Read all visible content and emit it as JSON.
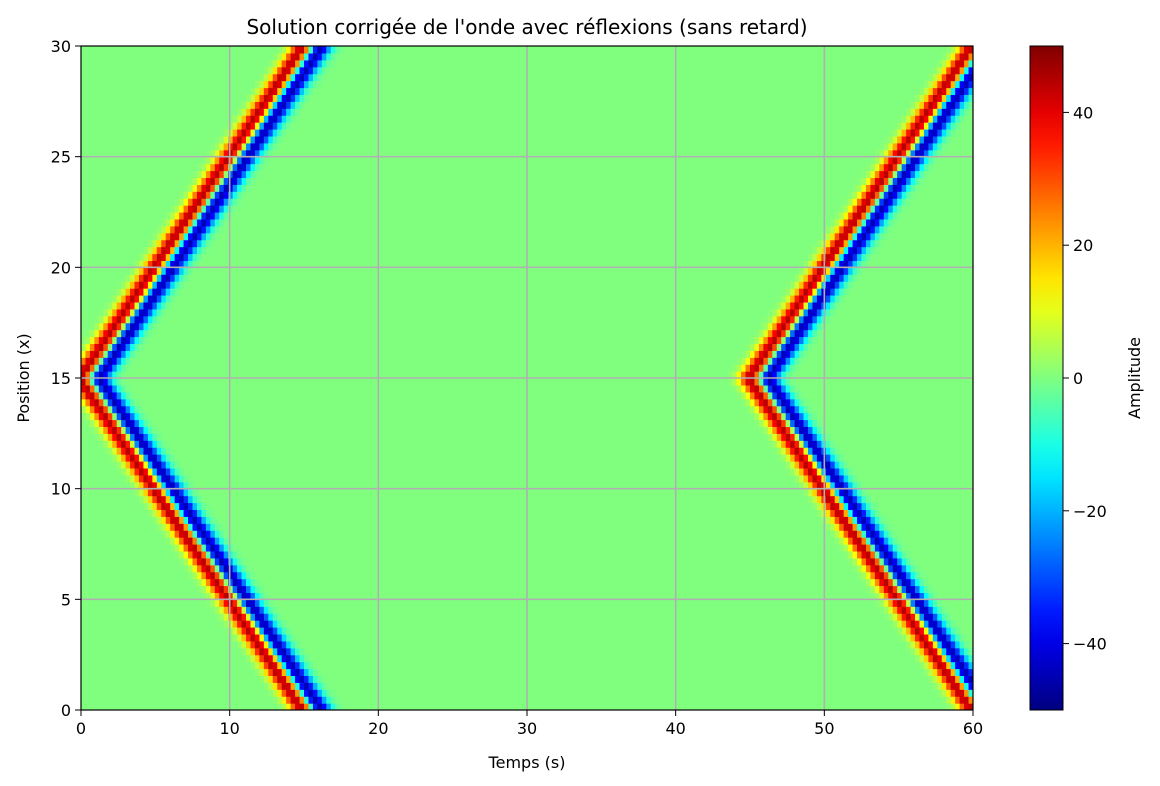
{
  "chart_data": {
    "type": "heatmap",
    "title": "Solution corrigée de l'onde avec réflexions (sans retard)",
    "xlabel": "Temps (s)",
    "ylabel": "Position (x)",
    "xlim": [
      0,
      60
    ],
    "ylim": [
      0,
      30
    ],
    "xticks": [
      0,
      10,
      20,
      30,
      40,
      50,
      60
    ],
    "yticks": [
      0,
      5,
      10,
      15,
      20,
      25,
      30
    ],
    "grid": true,
    "colormap": "jet",
    "background_value": 0,
    "colorbar": {
      "label": "Amplitude",
      "range": [
        -50,
        50
      ],
      "ticks": [
        40,
        20,
        0,
        -20,
        -40
      ],
      "tick_labels": [
        "40",
        "20",
        "0",
        "−20",
        "−40"
      ]
    },
    "wave": {
      "source_position": 15,
      "wave_speed": 1,
      "peak_amplitude": 50,
      "trough_amplitude": -50,
      "pulse_width": 0.55,
      "trough_lag": 1.1,
      "emission_times": [
        0,
        45
      ]
    }
  },
  "colors": {
    "grid": "#b0b0b0",
    "background_field": "#80ff7f",
    "axes": "#000000"
  }
}
